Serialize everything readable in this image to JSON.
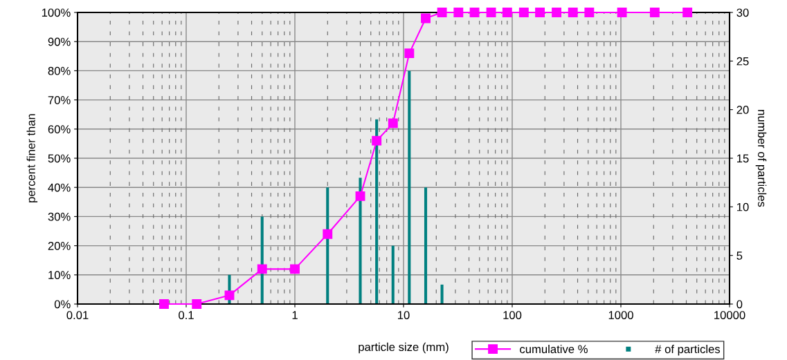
{
  "chart_data": {
    "type": "line",
    "xlabel": "particle size (mm)",
    "ylabel": "percent finer than",
    "y2label": "number of particles",
    "log": "x",
    "xlim": [
      0.01,
      10000
    ],
    "xticks": [
      0.01,
      0.1,
      1,
      10,
      100,
      1000,
      10000
    ],
    "ylim": [
      0,
      100
    ],
    "yticks": [
      {
        "value": 0,
        "label": "0%"
      },
      {
        "value": 10,
        "label": "10%"
      },
      {
        "value": 20,
        "label": "20%"
      },
      {
        "value": 30,
        "label": "30%"
      },
      {
        "value": 40,
        "label": "40%"
      },
      {
        "value": 50,
        "label": "50%"
      },
      {
        "value": 60,
        "label": "60%"
      },
      {
        "value": 70,
        "label": "70%"
      },
      {
        "value": 80,
        "label": "80%"
      },
      {
        "value": 90,
        "label": "90%"
      },
      {
        "value": 100,
        "label": "100%"
      }
    ],
    "y2lim": [
      0,
      30
    ],
    "y2ticks": [
      0,
      5,
      10,
      15,
      20,
      25,
      30
    ],
    "grid": true,
    "legend": "bottom right",
    "series": [
      {
        "name": "cumulative %",
        "color": "#ff00ff",
        "marker": "square",
        "line_style": "solid",
        "x": [
          0.0625,
          0.125,
          0.25,
          0.5,
          1,
          2,
          4,
          5.66,
          8,
          11.3,
          16,
          22.6,
          32,
          45,
          64,
          90,
          128,
          180,
          256,
          362,
          512,
          1024,
          2048,
          4096
        ],
        "values": [
          0,
          0,
          3,
          12,
          12,
          24,
          37,
          56,
          62,
          86,
          98,
          100,
          100,
          100,
          100,
          100,
          100,
          100,
          100,
          100,
          100,
          100,
          100,
          100
        ]
      },
      {
        "name": "# of particles",
        "type": "bar",
        "axis": "y2",
        "color": "#008080",
        "x": [
          0.25,
          0.5,
          2,
          4,
          5.66,
          8,
          11.3,
          16,
          22.6
        ],
        "values": [
          3,
          9,
          12,
          13,
          19,
          6,
          24,
          12,
          2
        ]
      }
    ]
  }
}
